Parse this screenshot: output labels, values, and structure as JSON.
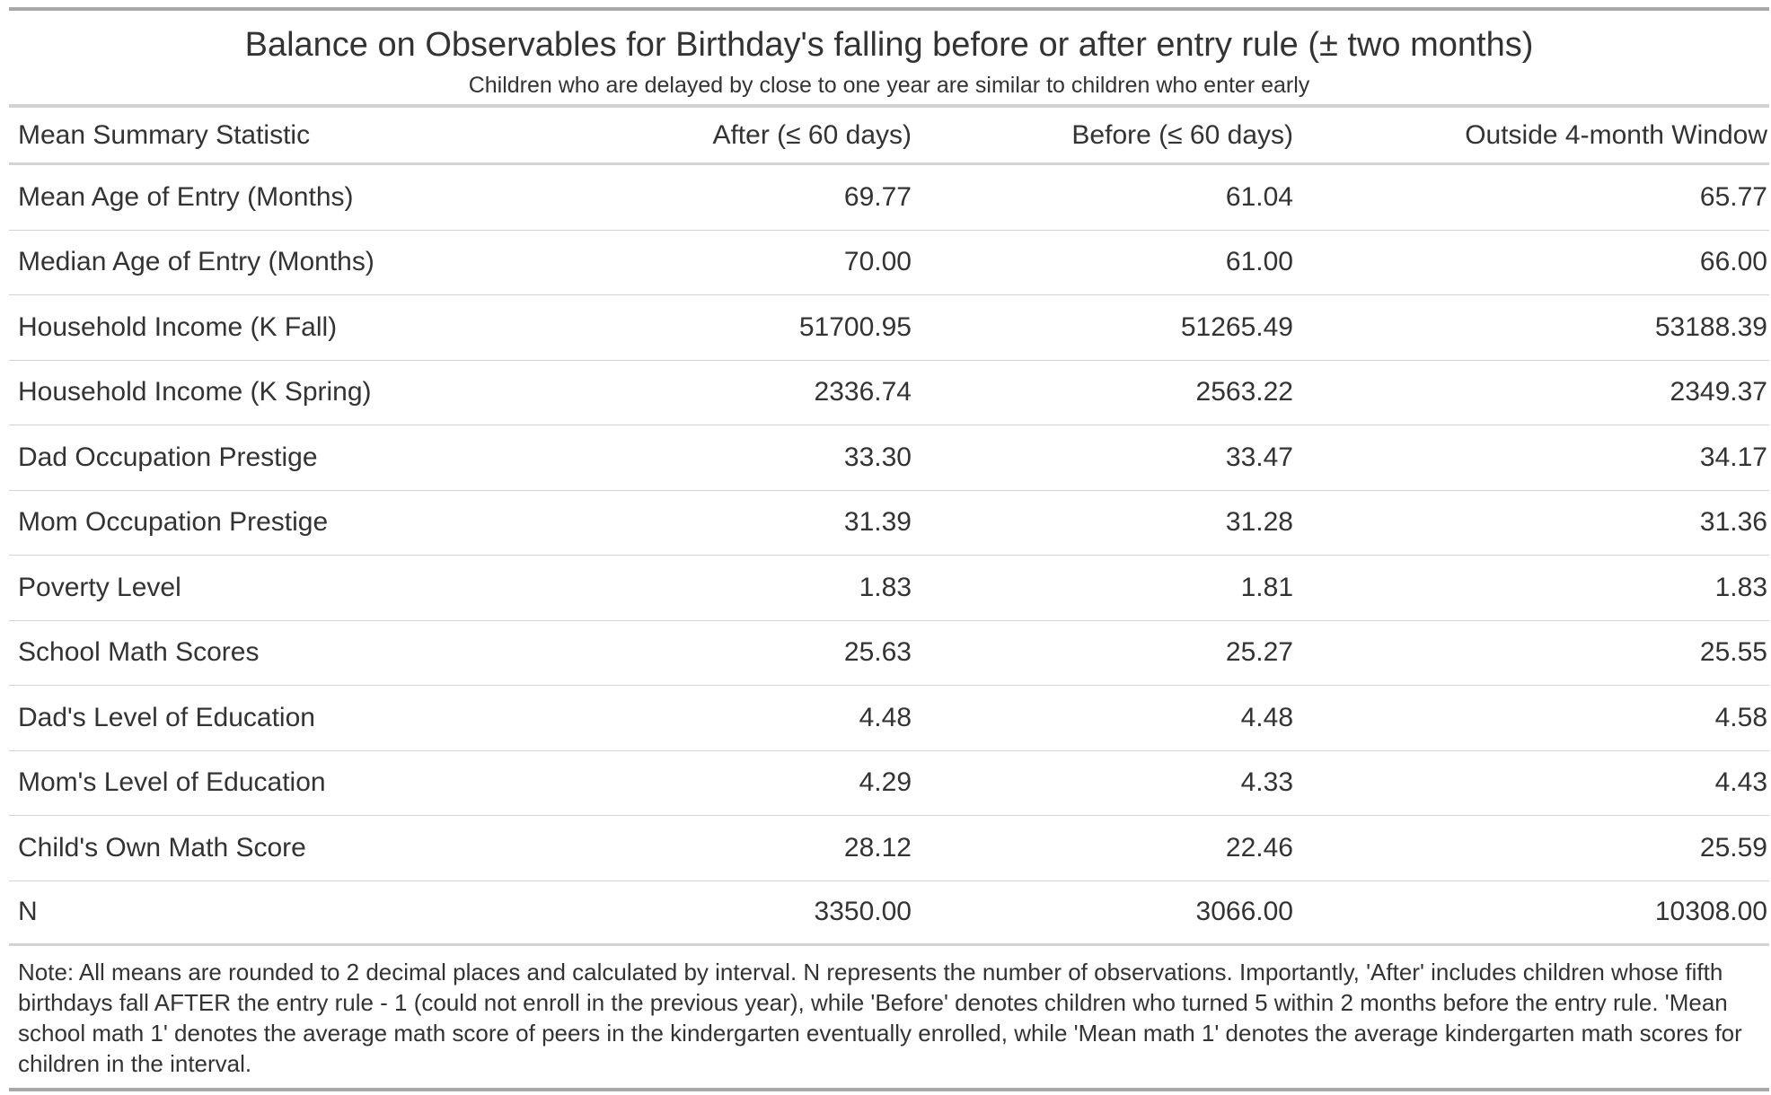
{
  "title": "Balance on Observables for Birthday's falling before or after entry rule (± two months)",
  "subtitle": "Children who are delayed by close to one year are similar to children who enter early",
  "columns": [
    "Mean Summary Statistic",
    "After (≤ 60 days)",
    "Before (≤ 60 days)",
    "Outside 4-month Window"
  ],
  "rows": [
    [
      "Mean Age of Entry (Months)",
      "69.77",
      "61.04",
      "65.77"
    ],
    [
      "Median Age of Entry (Months)",
      "70.00",
      "61.00",
      "66.00"
    ],
    [
      "Household Income (K Fall)",
      "51700.95",
      "51265.49",
      "53188.39"
    ],
    [
      "Household Income (K Spring)",
      "2336.74",
      "2563.22",
      "2349.37"
    ],
    [
      "Dad Occupation Prestige",
      "33.30",
      "33.47",
      "34.17"
    ],
    [
      "Mom Occupation Prestige",
      "31.39",
      "31.28",
      "31.36"
    ],
    [
      "Poverty Level",
      "1.83",
      "1.81",
      "1.83"
    ],
    [
      "School Math Scores",
      "25.63",
      "25.27",
      "25.55"
    ],
    [
      "Dad's Level of Education",
      "4.48",
      "4.48",
      "4.58"
    ],
    [
      "Mom's Level of Education",
      "4.29",
      "4.33",
      "4.43"
    ],
    [
      "Child's Own Math Score",
      "28.12",
      "22.46",
      "25.59"
    ],
    [
      "N",
      "3350.00",
      "3066.00",
      "10308.00"
    ]
  ],
  "note": "Note: All means are rounded to 2 decimal places and calculated by interval. N represents the number of observations. Importantly, 'After' includes children whose fifth birthdays fall AFTER the entry rule - 1 (could not enroll in the previous year), while 'Before' denotes children who turned 5 within 2 months before the entry rule. 'Mean school math 1' denotes the average math score of peers in the kindergarten eventually enrolled, while 'Mean math 1' denotes the average kindergarten math scores for children in the interval."
}
